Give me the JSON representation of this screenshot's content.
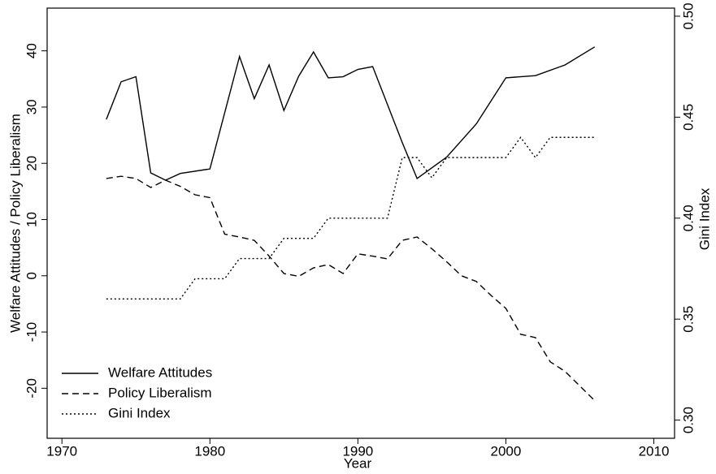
{
  "chart_data": {
    "type": "line",
    "x_label": "Year",
    "y_label": "Welfare Attitudes / Policy Liberalism",
    "y2_label": "Gini Index",
    "xlim": [
      1969,
      2011.4
    ],
    "xticks": [
      1970,
      1980,
      1990,
      2000,
      2010
    ],
    "ylim": [
      -28.9,
      47.6
    ],
    "yticks": [
      -20,
      -10,
      0,
      10,
      20,
      30,
      40
    ],
    "y2lim": [
      0.291,
      0.504
    ],
    "y2ticks": [
      {
        "value": 0.3,
        "label": "0.30"
      },
      {
        "value": 0.35,
        "label": "0.35"
      },
      {
        "value": 0.4,
        "label": "0.40"
      },
      {
        "value": 0.45,
        "label": "0.45"
      },
      {
        "value": 0.5,
        "label": "0.50"
      }
    ],
    "legend": "lower left",
    "series": [
      {
        "name": "Welfare Attitudes",
        "color": "#000000",
        "dash": "solid",
        "x": [
          1973,
          1974,
          1975,
          1976,
          1977,
          1978,
          1980,
          1982,
          1983,
          1984,
          1985,
          1986,
          1987,
          1988,
          1989,
          1990,
          1991,
          1993,
          1994,
          1996,
          1998,
          2000,
          2002,
          2004,
          2006
        ],
        "values": [
          27.8,
          34.5,
          35.4,
          18.3,
          17.0,
          18.2,
          19.0,
          39.0,
          31.5,
          37.5,
          29.4,
          35.5,
          39.8,
          35.2,
          35.4,
          36.7,
          37.2,
          23.7,
          17.3,
          21.1,
          27.0,
          35.2,
          35.6,
          37.5,
          40.7
        ]
      },
      {
        "name": "Policy Liberalism",
        "color": "#000000",
        "dash": "dashed",
        "x": [
          1973,
          1974,
          1975,
          1976,
          1977,
          1978,
          1979,
          1980,
          1981,
          1982,
          1983,
          1984,
          1985,
          1986,
          1987,
          1988,
          1989,
          1990,
          1991,
          1992,
          1993,
          1994,
          1995,
          1996,
          1997,
          1998,
          1999,
          2000,
          2001,
          2002,
          2003,
          2004,
          2005,
          2006
        ],
        "values": [
          17.3,
          17.7,
          17.3,
          15.7,
          17.0,
          15.9,
          14.4,
          13.9,
          7.4,
          6.9,
          6.3,
          3.5,
          0.4,
          -0.1,
          1.4,
          2.0,
          0.4,
          3.9,
          3.5,
          3.0,
          6.3,
          6.9,
          4.8,
          2.5,
          0,
          -1.0,
          -3.5,
          -5.8,
          -10.4,
          -11.0,
          -15.3,
          -17.0,
          -19.6,
          -22.2
        ]
      },
      {
        "name": "Gini Index",
        "color": "#000000",
        "dash": "dotted",
        "axis": "y2",
        "x": [
          1973,
          1974,
          1975,
          1976,
          1977,
          1978,
          1979,
          1980,
          1981,
          1982,
          1983,
          1984,
          1985,
          1986,
          1987,
          1988,
          1989,
          1990,
          1991,
          1992,
          1993,
          1994,
          1995,
          1996,
          1997,
          1998,
          1999,
          2000,
          2001,
          2002,
          2003,
          2004,
          2005,
          2006
        ],
        "values": [
          0.36,
          0.36,
          0.36,
          0.36,
          0.36,
          0.36,
          0.37,
          0.37,
          0.37,
          0.38,
          0.38,
          0.38,
          0.39,
          0.39,
          0.39,
          0.4,
          0.4,
          0.4,
          0.4,
          0.4,
          0.43,
          0.43,
          0.42,
          0.43,
          0.43,
          0.43,
          0.43,
          0.43,
          0.44,
          0.43,
          0.44,
          0.44,
          0.44,
          0.44
        ]
      }
    ]
  }
}
